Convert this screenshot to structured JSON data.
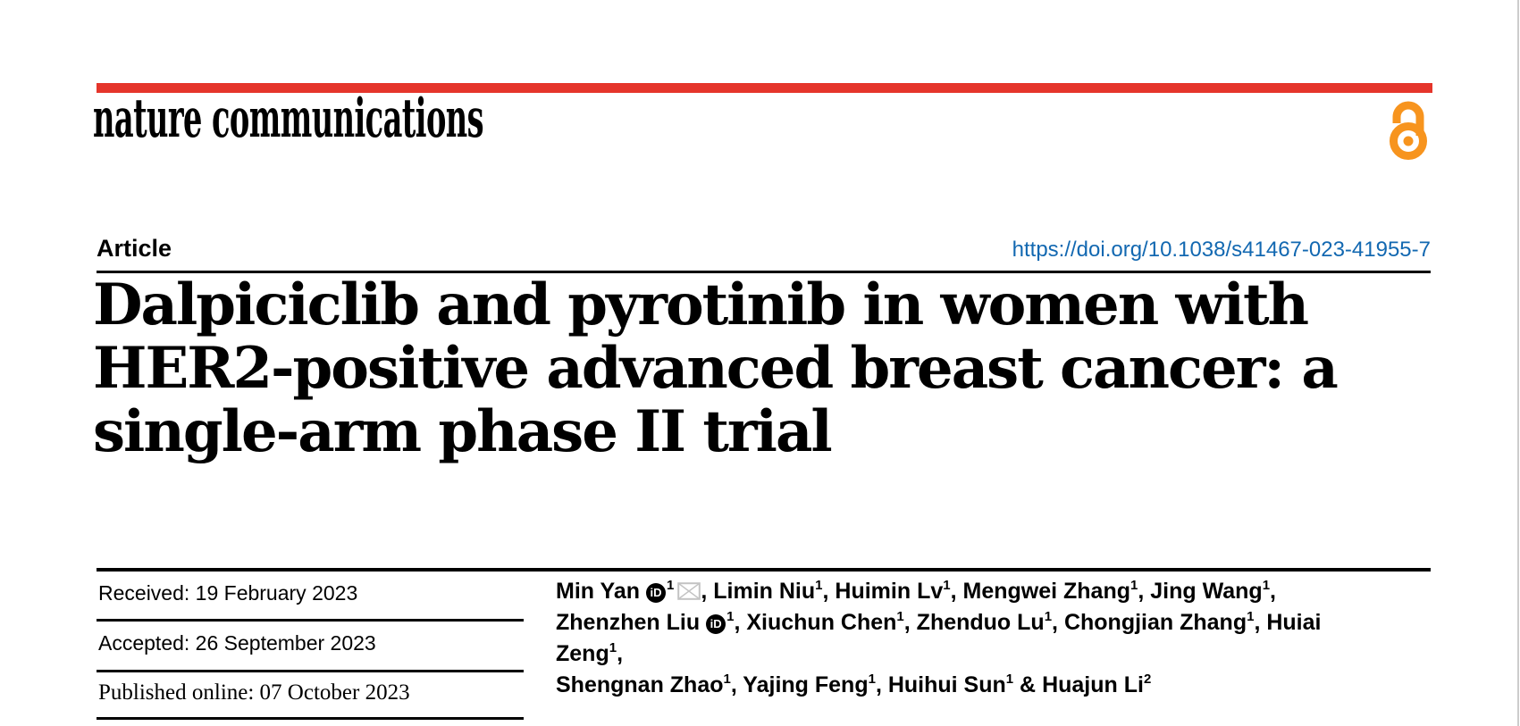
{
  "journal": {
    "name": "nature communications"
  },
  "colors": {
    "brand_red": "#e5352b",
    "open_access_orange": "#f7941e",
    "link_blue": "#1268b1",
    "text_black": "#000000",
    "icon_gray": "#c3c3c3",
    "page_edge_gray": "#cccccc"
  },
  "article": {
    "type_label": "Article",
    "doi": "https://doi.org/10.1038/s41467-023-41955-7",
    "title_lines": [
      "Dalpiciclib and pyrotinib in women with",
      "HER2-positive advanced breast cancer: a",
      "single-arm phase II trial"
    ]
  },
  "dates": {
    "rows": [
      {
        "text": "Received: 19 February 2023"
      },
      {
        "text": "Accepted: 26 September 2023"
      },
      {
        "text": "Published online: 07 October 2023"
      }
    ]
  },
  "icons": {
    "open_access": "open-access-lock-icon",
    "orcid_text": "iD",
    "email": "envelope-icon"
  },
  "authors": {
    "separator": ", ",
    "last_separator": " & ",
    "list": [
      {
        "name": "Min Yan",
        "sup": "1",
        "orcid": true,
        "email": true
      },
      {
        "name": "Limin Niu",
        "sup": "1"
      },
      {
        "name": "Huimin Lv",
        "sup": "1"
      },
      {
        "name": "Mengwei Zhang",
        "sup": "1"
      },
      {
        "name": "Jing Wang",
        "sup": "1",
        "break_after": true
      },
      {
        "name": "Zhenzhen Liu",
        "sup": "1",
        "orcid": true
      },
      {
        "name": "Xiuchun Chen",
        "sup": "1"
      },
      {
        "name": "Zhenduo Lu",
        "sup": "1"
      },
      {
        "name": "Chongjian Zhang",
        "sup": "1"
      },
      {
        "name": "Huiai Zeng",
        "sup": "1",
        "break_after": true
      },
      {
        "name": "Shengnan Zhao",
        "sup": "1"
      },
      {
        "name": "Yajing Feng",
        "sup": "1"
      },
      {
        "name": "Huihui Sun",
        "sup": "1"
      },
      {
        "name": "Huajun Li",
        "sup": "2"
      }
    ]
  }
}
